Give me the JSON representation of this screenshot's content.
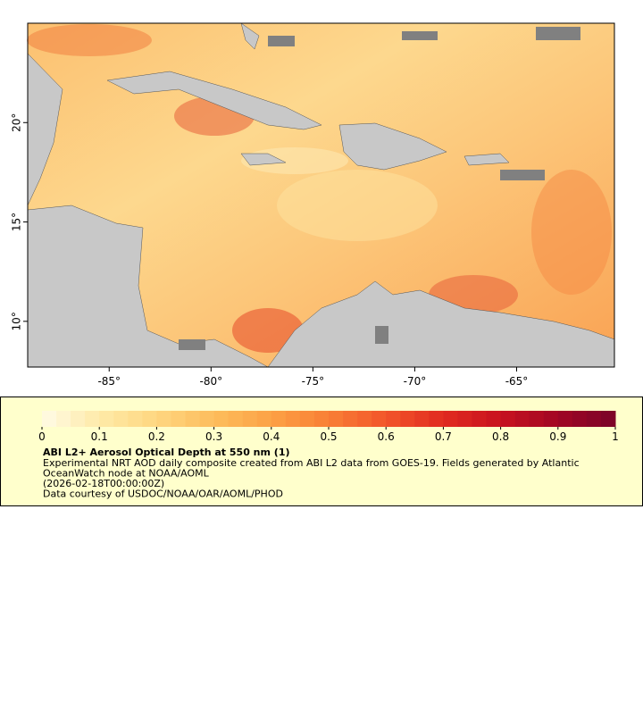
{
  "map": {
    "xlim": [
      -89,
      -60.2
    ],
    "ylim": [
      7.7,
      25
    ],
    "xticks": [
      {
        "value": -85,
        "label": "-85°"
      },
      {
        "value": -80,
        "label": "-80°"
      },
      {
        "value": -75,
        "label": "-75°"
      },
      {
        "value": -70,
        "label": "-70°"
      },
      {
        "value": -65,
        "label": "-65°"
      }
    ],
    "yticks": [
      {
        "value": 10,
        "label": "10°"
      },
      {
        "value": 15,
        "label": "15°"
      },
      {
        "value": 20,
        "label": "20°"
      }
    ]
  },
  "colorbar": {
    "range": [
      0,
      1
    ],
    "ticks": [
      0,
      0.1,
      0.2,
      0.3,
      0.4,
      0.5,
      0.6,
      0.7,
      0.8,
      0.9,
      1
    ],
    "colors": [
      "#fffbe6",
      "#feeaa8",
      "#fed680",
      "#fdbd5c",
      "#fca145",
      "#f97f35",
      "#f2552a",
      "#e12b20",
      "#c8121f",
      "#a10624",
      "#7a0428"
    ]
  },
  "legend": {
    "title": "ABI L2+ Aerosol Optical Depth at 550 nm (1)",
    "lines": [
      "Experimental NRT AOD daily composite created from ABI L2 data from GOES-19. Fields generated by Atlantic",
      "OceanWatch node at NOAA/AOML",
      "(2026-02-18T00:00:00Z)",
      "Data courtesy of USDOC/NOAA/OAR/AOML/PHOD"
    ]
  }
}
